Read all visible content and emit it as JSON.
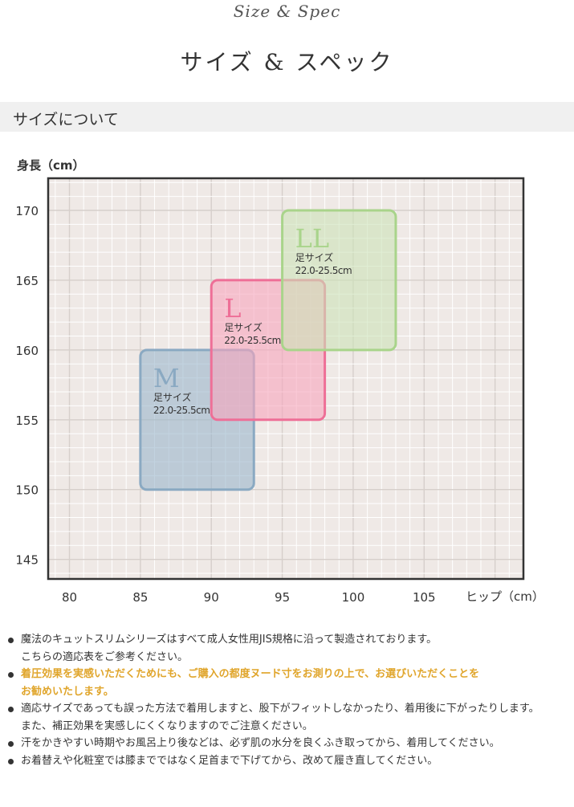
{
  "header": {
    "script_title": "Size & Spec",
    "main_title": "サイズ & スペック"
  },
  "section": {
    "title": "サイズについて"
  },
  "chart_data": {
    "type": "rect",
    "ylabel": "身長（cm）",
    "xlabel": "ヒップ（cm）",
    "xlim": [
      78.5,
      112
    ],
    "ylim": [
      143.6,
      172.3
    ],
    "x_ticks": [
      "80",
      "85",
      "90",
      "95",
      "100",
      "105"
    ],
    "y_ticks": [
      "170",
      "165",
      "160",
      "155",
      "150",
      "145"
    ],
    "x_tick_values": [
      80,
      85,
      90,
      95,
      100,
      105
    ],
    "y_tick_values": [
      170,
      165,
      160,
      155,
      150,
      145
    ],
    "grid": true,
    "sizes": [
      {
        "name": "M",
        "x_range": [
          85,
          93
        ],
        "y_range": [
          150,
          160
        ],
        "foot_label": "足サイズ",
        "foot_range": "22.0-25.5cm",
        "color": "#9ab6cc",
        "stroke": "#8aa9c2"
      },
      {
        "name": "L",
        "x_range": [
          90,
          98
        ],
        "y_range": [
          155,
          165
        ],
        "foot_label": "足サイズ",
        "foot_range": "22.0-25.5cm",
        "color": "#f6a5bd",
        "stroke": "#ee6f97"
      },
      {
        "name": "LL",
        "x_range": [
          95,
          103
        ],
        "y_range": [
          160,
          170
        ],
        "foot_label": "足サイズ",
        "foot_range": "22.0-25.5cm",
        "color": "#cbe3b7",
        "stroke": "#a9d48b"
      }
    ]
  },
  "notes": [
    {
      "lines": [
        "魔法のキュットスリムシリーズはすべて成人女性用JIS規格に沿って製造されております。",
        "こちらの適応表をご参考ください。"
      ],
      "highlight": false
    },
    {
      "lines": [
        "着圧効果を実感いただくためにも、ご購入の都度ヌード寸をお測りの上で、お選びいただくことを",
        "お勧めいたします。"
      ],
      "highlight": true
    },
    {
      "lines": [
        "適応サイズであっても誤った方法で着用しますと、股下がフィットしなかったり、着用後に下がったりします。",
        "また、補正効果を実感しにくくなりますのでご注意ください。"
      ],
      "highlight": false
    },
    {
      "lines": [
        "汗をかきやすい時期やお風呂上り後などは、必ず肌の水分を良くふき取ってから、着用してください。"
      ],
      "highlight": false
    },
    {
      "lines": [
        "お着替えや化粧室では膝までではなく足首まで下げてから、改めて履き直してください。"
      ],
      "highlight": false
    }
  ]
}
